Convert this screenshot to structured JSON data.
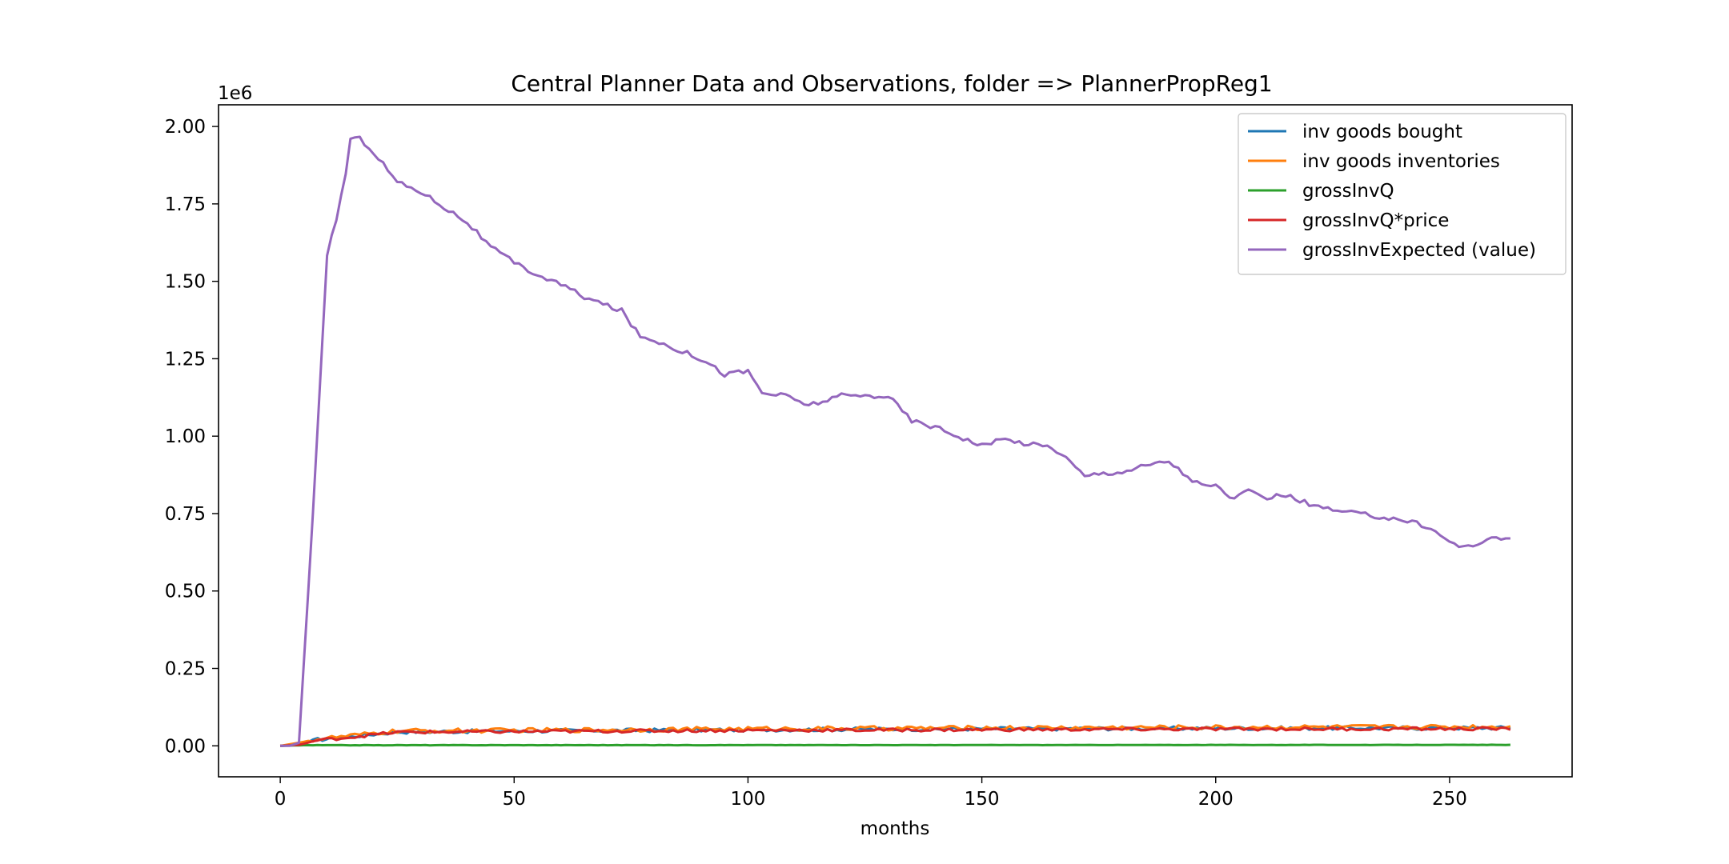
{
  "chart_data": {
    "type": "line",
    "title": "Central Planner Data and Observations, folder => PlannerPropReg1",
    "xlabel": "months",
    "ylabel": "",
    "y_offset_label": "1e6",
    "xlim": [
      -13.2,
      276.2
    ],
    "ylim": [
      -0.1,
      2.07
    ],
    "x_ticks": [
      0,
      50,
      100,
      150,
      200,
      250
    ],
    "y_ticks": [
      0.0,
      0.25,
      0.5,
      0.75,
      1.0,
      1.25,
      1.5,
      1.75,
      2.0
    ],
    "y_tick_labels": [
      "0.00",
      "0.25",
      "0.50",
      "0.75",
      "1.00",
      "1.25",
      "1.50",
      "1.75",
      "2.00"
    ],
    "grid": false,
    "legend_position": "top-right",
    "series_count": 264,
    "series": [
      {
        "name": "inv goods bought",
        "color": "#1f77b4",
        "keypoints": [
          [
            0,
            0.0
          ],
          [
            4,
            0.003
          ],
          [
            8,
            0.02
          ],
          [
            15,
            0.03
          ],
          [
            25,
            0.045
          ],
          [
            50,
            0.048
          ],
          [
            100,
            0.052
          ],
          [
            150,
            0.055
          ],
          [
            200,
            0.057
          ],
          [
            263,
            0.058
          ]
        ],
        "noise": 0.006
      },
      {
        "name": "inv goods inventories",
        "color": "#ff7f0e",
        "keypoints": [
          [
            0,
            0.0
          ],
          [
            4,
            0.01
          ],
          [
            8,
            0.022
          ],
          [
            15,
            0.032
          ],
          [
            25,
            0.048
          ],
          [
            50,
            0.05
          ],
          [
            100,
            0.055
          ],
          [
            150,
            0.058
          ],
          [
            200,
            0.06
          ],
          [
            263,
            0.062
          ]
        ],
        "noise": 0.007
      },
      {
        "name": "grossInvQ",
        "color": "#2ca02c",
        "keypoints": [
          [
            0,
            0.0
          ],
          [
            5,
            0.002
          ],
          [
            263,
            0.003
          ]
        ],
        "noise": 0.0005
      },
      {
        "name": "grossInvQ*price",
        "color": "#d62728",
        "keypoints": [
          [
            0,
            0.0
          ],
          [
            4,
            0.003
          ],
          [
            8,
            0.018
          ],
          [
            15,
            0.028
          ],
          [
            25,
            0.044
          ],
          [
            50,
            0.046
          ],
          [
            100,
            0.05
          ],
          [
            150,
            0.052
          ],
          [
            200,
            0.054
          ],
          [
            263,
            0.055
          ]
        ],
        "noise": 0.005
      },
      {
        "name": "grossInvExpected (value)",
        "color": "#9467bd",
        "keypoints": [
          [
            0,
            0.0
          ],
          [
            2,
            0.0
          ],
          [
            4,
            0.01
          ],
          [
            7,
            0.75
          ],
          [
            9,
            1.3
          ],
          [
            10,
            1.59
          ],
          [
            12,
            1.7
          ],
          [
            14,
            1.85
          ],
          [
            15,
            1.96
          ],
          [
            17,
            1.96
          ],
          [
            19,
            1.935
          ],
          [
            23,
            1.86
          ],
          [
            25,
            1.82
          ],
          [
            30,
            1.79
          ],
          [
            35,
            1.74
          ],
          [
            40,
            1.69
          ],
          [
            45,
            1.61
          ],
          [
            50,
            1.56
          ],
          [
            55,
            1.52
          ],
          [
            60,
            1.49
          ],
          [
            65,
            1.45
          ],
          [
            70,
            1.42
          ],
          [
            73,
            1.405
          ],
          [
            77,
            1.32
          ],
          [
            80,
            1.31
          ],
          [
            85,
            1.28
          ],
          [
            90,
            1.25
          ],
          [
            95,
            1.2
          ],
          [
            100,
            1.21
          ],
          [
            103,
            1.14
          ],
          [
            108,
            1.13
          ],
          [
            113,
            1.1
          ],
          [
            120,
            1.13
          ],
          [
            125,
            1.13
          ],
          [
            130,
            1.13
          ],
          [
            135,
            1.05
          ],
          [
            140,
            1.03
          ],
          [
            145,
            1.0
          ],
          [
            150,
            0.97
          ],
          [
            155,
            0.99
          ],
          [
            160,
            0.975
          ],
          [
            165,
            0.965
          ],
          [
            168,
            0.93
          ],
          [
            172,
            0.87
          ],
          [
            175,
            0.88
          ],
          [
            180,
            0.885
          ],
          [
            185,
            0.905
          ],
          [
            190,
            0.92
          ],
          [
            193,
            0.88
          ],
          [
            197,
            0.84
          ],
          [
            200,
            0.84
          ],
          [
            203,
            0.8
          ],
          [
            207,
            0.82
          ],
          [
            210,
            0.8
          ],
          [
            215,
            0.81
          ],
          [
            220,
            0.78
          ],
          [
            225,
            0.76
          ],
          [
            230,
            0.75
          ],
          [
            235,
            0.74
          ],
          [
            240,
            0.73
          ],
          [
            245,
            0.71
          ],
          [
            250,
            0.66
          ],
          [
            253,
            0.64
          ],
          [
            257,
            0.66
          ],
          [
            260,
            0.67
          ],
          [
            263,
            0.67
          ]
        ],
        "noise": 0.008
      }
    ]
  }
}
